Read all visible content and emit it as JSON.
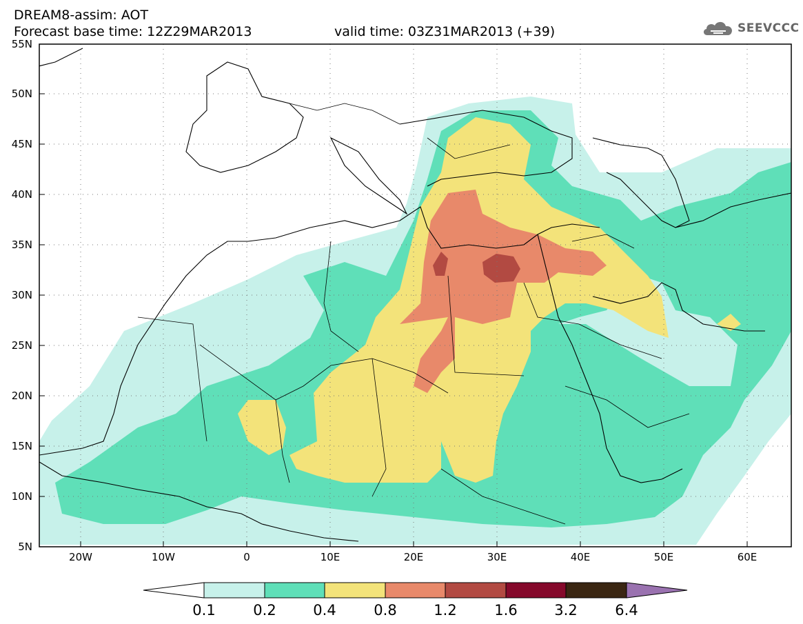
{
  "header": {
    "title": "DREAM8-assim: AOT",
    "base_time": "Forecast base time: 12Z29MAR2013",
    "valid_time": "valid time: 03Z31MAR2013 (+39)"
  },
  "logo": {
    "text": "SEEVCCC",
    "icon": "cloud-logo-icon"
  },
  "axes": {
    "lat_labels": [
      "55N",
      "50N",
      "45N",
      "40N",
      "35N",
      "30N",
      "25N",
      "20N",
      "15N",
      "10N",
      "5N"
    ],
    "lon_labels": [
      "20W",
      "10W",
      "0",
      "10E",
      "20E",
      "30E",
      "40E",
      "50E",
      "60E"
    ]
  },
  "colorbar": {
    "labels": [
      "0.1",
      "0.2",
      "0.4",
      "0.8",
      "1.2",
      "1.6",
      "3.2",
      "6.4"
    ],
    "colors": [
      "#ffffff",
      "#c7f1ea",
      "#5fdfb8",
      "#f3e37a",
      "#e8896a",
      "#b24a42",
      "#85092b",
      "#3a2612",
      "#9a72b0"
    ]
  }
}
